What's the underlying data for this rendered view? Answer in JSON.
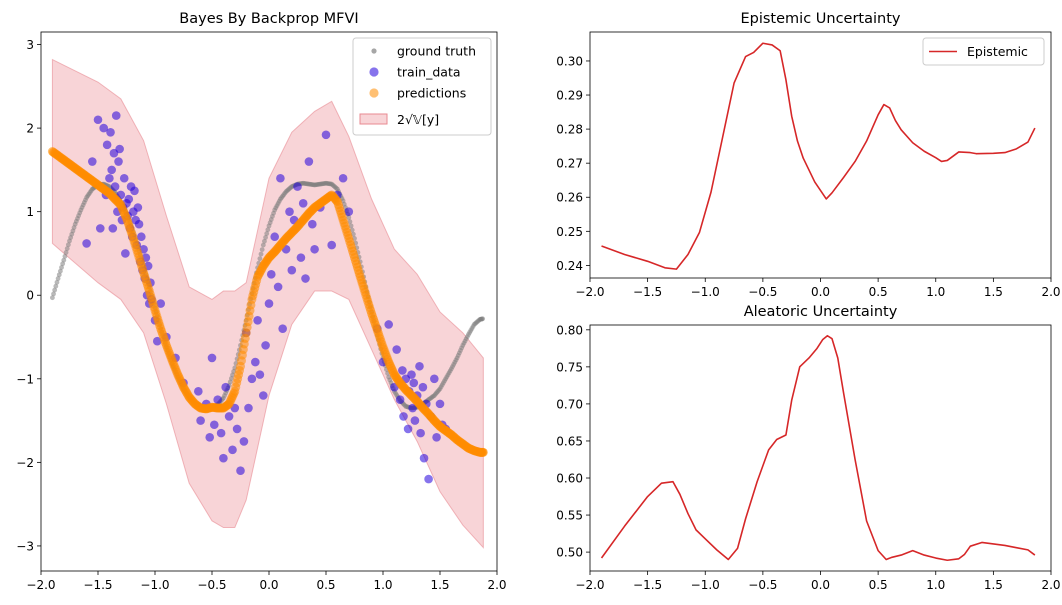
{
  "figure": {
    "background": "#ffffff"
  },
  "chart_data": [
    {
      "type": "scatter",
      "title": "Bayes By Backprop MFVI",
      "xlabel": "",
      "ylabel": "",
      "xlim": [
        -2.0,
        2.0
      ],
      "ylim": [
        -3.0,
        3.0
      ],
      "xticks": [
        -2.0,
        -1.5,
        -1.0,
        -0.5,
        0.0,
        0.5,
        1.0,
        1.5,
        2.0
      ],
      "xtick_labels": [
        "−2.0",
        "−1.5",
        "−1.0",
        "−0.5",
        "0.0",
        "0.5",
        "1.0",
        "1.5",
        "2.0"
      ],
      "yticks": [
        -3,
        -2,
        -1,
        0,
        1,
        2,
        3
      ],
      "ytick_labels": [
        "−3",
        "−2",
        "−1",
        "0",
        "1",
        "2",
        "3"
      ],
      "grid": false,
      "legend_position": "top-right",
      "series": [
        {
          "name": "ground truth",
          "kind": "points",
          "color": "#808080",
          "x": [
            -1.9,
            -1.85,
            -1.8,
            -1.75,
            -1.7,
            -1.65,
            -1.6,
            -1.55,
            -1.5,
            -1.45,
            -1.4,
            -1.35,
            -1.3,
            -1.25,
            -1.2,
            -1.15,
            -1.1,
            -1.05,
            -1.0,
            -0.95,
            -0.9,
            -0.85,
            -0.8,
            -0.75,
            -0.7,
            -0.65,
            -0.6,
            -0.55,
            -0.5,
            -0.45,
            -0.4,
            -0.35,
            -0.3,
            -0.25,
            -0.2,
            -0.15,
            -0.1,
            -0.05,
            0.0,
            0.05,
            0.1,
            0.15,
            0.2,
            0.25,
            0.3,
            0.35,
            0.4,
            0.45,
            0.5,
            0.55,
            0.6,
            0.65,
            0.7,
            0.75,
            0.8,
            0.85,
            0.9,
            0.95,
            1.0,
            1.05,
            1.1,
            1.15,
            1.2,
            1.25,
            1.3,
            1.35,
            1.4,
            1.45,
            1.5,
            1.55,
            1.6,
            1.65,
            1.7,
            1.75,
            1.8,
            1.85,
            1.88
          ],
          "y": [
            -0.03,
            0.2,
            0.42,
            0.65,
            0.85,
            1.02,
            1.17,
            1.27,
            1.32,
            1.33,
            1.3,
            1.23,
            1.12,
            0.98,
            0.8,
            0.58,
            0.34,
            0.1,
            -0.15,
            -0.4,
            -0.62,
            -0.82,
            -0.98,
            -1.12,
            -1.22,
            -1.29,
            -1.33,
            -1.35,
            -1.34,
            -1.31,
            -1.23,
            -1.08,
            -0.87,
            -0.6,
            -0.3,
            0.02,
            0.33,
            0.6,
            0.83,
            1.02,
            1.15,
            1.24,
            1.3,
            1.33,
            1.34,
            1.33,
            1.32,
            1.33,
            1.34,
            1.33,
            1.27,
            1.13,
            0.93,
            0.68,
            0.4,
            0.1,
            -0.2,
            -0.48,
            -0.75,
            -0.98,
            -1.15,
            -1.26,
            -1.33,
            -1.35,
            -1.34,
            -1.3,
            -1.25,
            -1.2,
            -1.12,
            -1.0,
            -0.88,
            -0.75,
            -0.6,
            -0.47,
            -0.35,
            -0.29,
            -0.28
          ]
        },
        {
          "name": "train_data",
          "kind": "points",
          "color": "#2200dd",
          "x": [
            -1.6,
            -1.55,
            -1.5,
            -1.48,
            -1.45,
            -1.43,
            -1.42,
            -1.4,
            -1.39,
            -1.38,
            -1.37,
            -1.36,
            -1.35,
            -1.34,
            -1.33,
            -1.32,
            -1.31,
            -1.3,
            -1.29,
            -1.28,
            -1.27,
            -1.26,
            -1.25,
            -1.24,
            -1.23,
            -1.22,
            -1.21,
            -1.2,
            -1.19,
            -1.18,
            -1.17,
            -1.16,
            -1.15,
            -1.14,
            -1.13,
            -1.12,
            -1.11,
            -1.1,
            -1.09,
            -1.08,
            -1.07,
            -1.06,
            -1.05,
            -1.04,
            -1.03,
            -1.0,
            -0.98,
            -0.95,
            -0.9,
            -0.82,
            -0.75,
            -0.62,
            -0.6,
            -0.55,
            -0.52,
            -0.5,
            -0.48,
            -0.45,
            -0.42,
            -0.4,
            -0.38,
            -0.35,
            -0.32,
            -0.3,
            -0.28,
            -0.25,
            -0.22,
            -0.2,
            -0.18,
            -0.15,
            -0.12,
            -0.1,
            -0.08,
            -0.05,
            -0.03,
            0.0,
            0.02,
            0.05,
            0.08,
            0.1,
            0.12,
            0.15,
            0.18,
            0.2,
            0.22,
            0.25,
            0.28,
            0.3,
            0.32,
            0.35,
            0.38,
            0.4,
            0.45,
            0.5,
            0.55,
            0.6,
            0.65,
            0.7,
            0.95,
            1.0,
            1.05,
            1.1,
            1.12,
            1.15,
            1.17,
            1.18,
            1.2,
            1.22,
            1.23,
            1.25,
            1.26,
            1.27,
            1.28,
            1.3,
            1.32,
            1.33,
            1.35,
            1.36,
            1.38,
            1.4,
            1.42,
            1.45,
            1.47,
            1.5,
            1.52,
            1.55
          ],
          "y": [
            0.62,
            1.6,
            2.1,
            0.8,
            2.0,
            1.2,
            1.8,
            1.4,
            1.95,
            1.5,
            0.8,
            1.7,
            1.3,
            2.15,
            1.0,
            1.6,
            1.75,
            1.2,
            0.9,
            1.05,
            1.4,
            0.5,
            1.1,
            0.95,
            1.15,
            0.8,
            1.3,
            0.7,
            1.0,
            1.25,
            0.9,
            0.6,
            1.05,
            0.85,
            0.4,
            0.7,
            0.3,
            0.55,
            0.2,
            0.45,
            0.0,
            0.35,
            -0.1,
            0.15,
            -0.05,
            -0.3,
            -0.55,
            -0.1,
            -0.5,
            -0.75,
            -1.05,
            -1.15,
            -1.5,
            -1.3,
            -1.7,
            -0.75,
            -1.55,
            -1.25,
            -1.65,
            -1.95,
            -1.1,
            -1.45,
            -1.85,
            -1.35,
            -1.6,
            -2.1,
            -1.75,
            -0.45,
            -1.35,
            -1.0,
            -0.8,
            -0.3,
            -0.95,
            -1.2,
            -0.6,
            -0.1,
            0.25,
            0.7,
            0.1,
            1.4,
            -0.4,
            0.55,
            1.0,
            0.3,
            0.9,
            1.3,
            0.45,
            1.1,
            0.2,
            1.6,
            0.85,
            0.55,
            1.05,
            1.92,
            0.6,
            1.2,
            1.4,
            1.0,
            -0.4,
            -0.8,
            -0.35,
            -1.1,
            -0.65,
            -1.25,
            -0.9,
            -1.45,
            -1.0,
            -1.6,
            -1.15,
            -0.95,
            -1.35,
            -1.05,
            -1.5,
            -1.2,
            -0.85,
            -1.65,
            -1.1,
            -1.95,
            -1.3,
            -2.2,
            -1.45,
            -1.0,
            -1.7,
            -1.3,
            -1.55,
            -1.6
          ]
        },
        {
          "name": "predictions",
          "kind": "points",
          "color": "#ff8c00",
          "x": [
            -1.9,
            -1.85,
            -1.8,
            -1.75,
            -1.7,
            -1.65,
            -1.6,
            -1.55,
            -1.5,
            -1.45,
            -1.4,
            -1.35,
            -1.3,
            -1.25,
            -1.2,
            -1.15,
            -1.1,
            -1.05,
            -1.0,
            -0.95,
            -0.9,
            -0.85,
            -0.8,
            -0.75,
            -0.7,
            -0.65,
            -0.6,
            -0.55,
            -0.5,
            -0.45,
            -0.4,
            -0.35,
            -0.3,
            -0.25,
            -0.2,
            -0.15,
            -0.1,
            -0.05,
            0.0,
            0.05,
            0.1,
            0.15,
            0.2,
            0.25,
            0.3,
            0.35,
            0.4,
            0.45,
            0.5,
            0.55,
            0.6,
            0.65,
            0.7,
            0.75,
            0.8,
            0.85,
            0.9,
            0.95,
            1.0,
            1.05,
            1.1,
            1.15,
            1.2,
            1.25,
            1.3,
            1.35,
            1.4,
            1.45,
            1.5,
            1.55,
            1.6,
            1.65,
            1.7,
            1.75,
            1.8,
            1.85,
            1.88
          ],
          "y": [
            1.72,
            1.67,
            1.62,
            1.57,
            1.52,
            1.47,
            1.42,
            1.37,
            1.32,
            1.27,
            1.22,
            1.15,
            1.08,
            0.92,
            0.72,
            0.5,
            0.27,
            0.05,
            -0.18,
            -0.4,
            -0.6,
            -0.78,
            -0.95,
            -1.1,
            -1.22,
            -1.3,
            -1.35,
            -1.36,
            -1.34,
            -1.35,
            -1.35,
            -1.3,
            -1.15,
            -0.85,
            -0.45,
            -0.05,
            0.22,
            0.35,
            0.45,
            0.52,
            0.6,
            0.68,
            0.75,
            0.82,
            0.9,
            0.98,
            1.05,
            1.1,
            1.15,
            1.2,
            1.12,
            0.9,
            0.68,
            0.45,
            0.22,
            0.0,
            -0.22,
            -0.42,
            -0.62,
            -0.8,
            -0.95,
            -1.05,
            -1.13,
            -1.2,
            -1.27,
            -1.35,
            -1.42,
            -1.5,
            -1.57,
            -1.62,
            -1.67,
            -1.73,
            -1.78,
            -1.83,
            -1.86,
            -1.88,
            -1.88
          ]
        },
        {
          "name": "2√𝕍[y]",
          "kind": "band",
          "color": "#f0a0a6",
          "x": [
            -1.9,
            -1.5,
            -1.3,
            -1.1,
            -0.9,
            -0.7,
            -0.5,
            -0.4,
            -0.3,
            -0.2,
            0.0,
            0.2,
            0.4,
            0.55,
            0.7,
            0.9,
            1.1,
            1.3,
            1.5,
            1.7,
            1.88
          ],
          "upper": [
            2.82,
            2.55,
            2.35,
            1.85,
            0.95,
            0.1,
            -0.05,
            0.05,
            0.05,
            0.15,
            1.4,
            1.95,
            2.2,
            2.32,
            1.9,
            1.15,
            0.55,
            0.25,
            -0.2,
            -0.45,
            -0.75
          ],
          "lower": [
            0.62,
            0.15,
            -0.05,
            -0.45,
            -1.3,
            -2.25,
            -2.7,
            -2.78,
            -2.78,
            -2.45,
            -1.2,
            -0.35,
            0.05,
            0.05,
            -0.05,
            -0.65,
            -1.25,
            -1.75,
            -2.35,
            -2.75,
            -3.02
          ]
        }
      ]
    },
    {
      "type": "line",
      "title": "Epistemic Uncertainty",
      "xlabel": "",
      "ylabel": "",
      "xlim": [
        -2.0,
        2.0
      ],
      "ylim": [
        0.24,
        0.3
      ],
      "xticks": [
        -2.0,
        -1.5,
        -1.0,
        -0.5,
        0.0,
        0.5,
        1.0,
        1.5,
        2.0
      ],
      "xtick_labels": [
        "−2.0",
        "−1.5",
        "−1.0",
        "−0.5",
        "0.0",
        "0.5",
        "1.0",
        "1.5",
        "2.0"
      ],
      "yticks": [
        0.24,
        0.25,
        0.26,
        0.27,
        0.28,
        0.29,
        0.3
      ],
      "ytick_labels": [
        "0.24",
        "0.25",
        "0.26",
        "0.27",
        "0.28",
        "0.29",
        "0.30"
      ],
      "grid": false,
      "legend_position": "top-right",
      "series": [
        {
          "name": "Epistemic",
          "color": "#d62728",
          "x": [
            -1.9,
            -1.7,
            -1.5,
            -1.35,
            -1.25,
            -1.15,
            -1.05,
            -0.95,
            -0.85,
            -0.75,
            -0.65,
            -0.58,
            -0.5,
            -0.42,
            -0.35,
            -0.3,
            -0.25,
            -0.2,
            -0.15,
            -0.05,
            0.05,
            0.1,
            0.2,
            0.3,
            0.4,
            0.5,
            0.55,
            0.6,
            0.65,
            0.7,
            0.8,
            0.9,
            1.0,
            1.05,
            1.1,
            1.2,
            1.3,
            1.35,
            1.5,
            1.6,
            1.7,
            1.8,
            1.86
          ],
          "y": [
            0.2457,
            0.2432,
            0.2412,
            0.2393,
            0.2389,
            0.2432,
            0.2497,
            0.2615,
            0.2775,
            0.2935,
            0.3013,
            0.3025,
            0.3052,
            0.3047,
            0.303,
            0.2945,
            0.2838,
            0.2765,
            0.2715,
            0.2645,
            0.2595,
            0.2613,
            0.2658,
            0.2705,
            0.2765,
            0.2842,
            0.2872,
            0.2862,
            0.2825,
            0.2798,
            0.276,
            0.2735,
            0.2716,
            0.2705,
            0.2708,
            0.2733,
            0.2731,
            0.2728,
            0.2729,
            0.2731,
            0.2742,
            0.2762,
            0.2803
          ]
        }
      ]
    },
    {
      "type": "line",
      "title": "Aleatoric Uncertainty",
      "xlabel": "",
      "ylabel": "",
      "xlim": [
        -2.0,
        2.0
      ],
      "ylim": [
        0.5,
        0.8
      ],
      "xticks": [
        -2.0,
        -1.5,
        -1.0,
        -0.5,
        0.0,
        0.5,
        1.0,
        1.5,
        2.0
      ],
      "xtick_labels": [
        "−2.0",
        "−1.5",
        "−1.0",
        "−0.5",
        "0.0",
        "0.5",
        "1.0",
        "1.5",
        "2.0"
      ],
      "yticks": [
        0.5,
        0.55,
        0.6,
        0.65,
        0.7,
        0.75,
        0.8
      ],
      "ytick_labels": [
        "0.50",
        "0.55",
        "0.60",
        "0.65",
        "0.70",
        "0.75",
        "0.80"
      ],
      "grid": false,
      "series": [
        {
          "color": "#d62728",
          "x": [
            -1.9,
            -1.7,
            -1.5,
            -1.38,
            -1.28,
            -1.22,
            -1.15,
            -1.08,
            -1.0,
            -0.9,
            -0.8,
            -0.72,
            -0.65,
            -0.55,
            -0.45,
            -0.38,
            -0.3,
            -0.25,
            -0.18,
            -0.1,
            -0.03,
            0.02,
            0.06,
            0.1,
            0.15,
            0.2,
            0.3,
            0.4,
            0.5,
            0.57,
            0.62,
            0.7,
            0.8,
            0.9,
            1.0,
            1.1,
            1.2,
            1.25,
            1.3,
            1.4,
            1.5,
            1.6,
            1.7,
            1.8,
            1.86
          ],
          "y": [
            0.492,
            0.535,
            0.575,
            0.593,
            0.595,
            0.578,
            0.552,
            0.53,
            0.518,
            0.503,
            0.49,
            0.505,
            0.545,
            0.595,
            0.638,
            0.652,
            0.658,
            0.705,
            0.75,
            0.762,
            0.775,
            0.787,
            0.792,
            0.788,
            0.762,
            0.715,
            0.625,
            0.542,
            0.502,
            0.49,
            0.493,
            0.496,
            0.502,
            0.496,
            0.492,
            0.489,
            0.491,
            0.497,
            0.508,
            0.513,
            0.511,
            0.509,
            0.506,
            0.503,
            0.496
          ]
        }
      ]
    }
  ]
}
